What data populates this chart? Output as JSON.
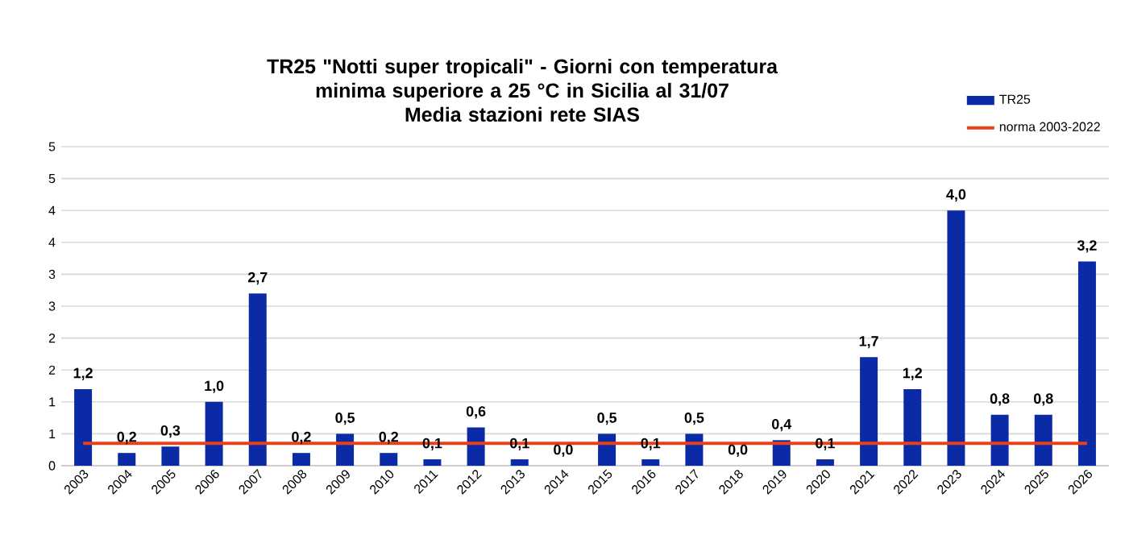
{
  "chart_data": {
    "type": "bar",
    "title": "TR25 \"Notti super tropicali\" - Giorni con temperatura minima superiore a 25 °C in Sicilia al 31/07",
    "subtitle": "Media stazioni rete SIAS",
    "categories": [
      "2003",
      "2004",
      "2005",
      "2006",
      "2007",
      "2008",
      "2009",
      "2010",
      "2011",
      "2012",
      "2013",
      "2014",
      "2015",
      "2016",
      "2017",
      "2018",
      "2019",
      "2020",
      "2021",
      "2022",
      "2023",
      "2024",
      "2025",
      "2026"
    ],
    "series": [
      {
        "name": "TR25",
        "color": "#0b2aa6",
        "values": [
          1.2,
          0.2,
          0.3,
          1.0,
          2.7,
          0.2,
          0.5,
          0.2,
          0.1,
          0.6,
          0.1,
          0.0,
          0.5,
          0.1,
          0.5,
          0.0,
          0.4,
          0.1,
          1.7,
          1.2,
          4.0,
          0.8,
          0.8,
          3.2
        ]
      }
    ],
    "value_labels": [
      "1,2",
      "0,2",
      "0,3",
      "1,0",
      "2,7",
      "0,2",
      "0,5",
      "0,2",
      "0,1",
      "0,6",
      "0,1",
      "0,0",
      "0,5",
      "0,1",
      "0,5",
      "0,0",
      "0,4",
      "0,1",
      "1,7",
      "1,2",
      "4,0",
      "0,8",
      "0,8",
      "3,2"
    ],
    "ref_lines": [
      {
        "axis": "y",
        "value": 0.35,
        "label": "norma 2003-2022",
        "color": "#e8401a"
      }
    ],
    "ylim": [
      0,
      5
    ],
    "yticks": [
      0,
      {
        "value": 0.5,
        "label": "1"
      },
      1,
      {
        "value": 1.5,
        "label": "2"
      },
      2,
      {
        "value": 2.5,
        "label": "3"
      },
      3,
      {
        "value": 3.5,
        "label": "4"
      },
      4,
      {
        "value": 4.5,
        "label": "5"
      },
      5
    ],
    "grid": "y",
    "legend": "top right"
  }
}
